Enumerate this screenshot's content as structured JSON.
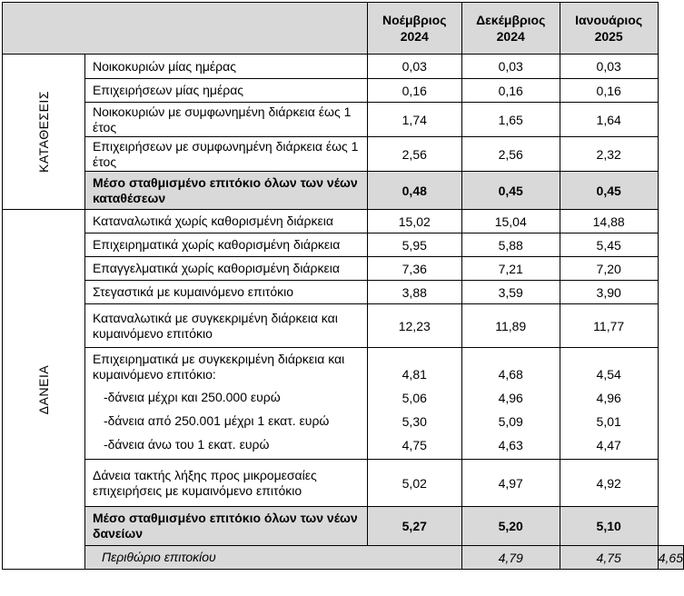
{
  "header": {
    "col1": "Νοέμβριος 2024",
    "col1a": "Νοέμβριος",
    "col1b": "2024",
    "col2a": "Δεκέμβριος",
    "col2b": "2024",
    "col3a": "Ιανουάριος",
    "col3b": "2025"
  },
  "deposits": {
    "side_label": "ΚΑΤΑΘΕΣΕΙΣ",
    "rows": [
      {
        "label": "Νοικοκυριών μίας ημέρας",
        "v": [
          "0,03",
          "0,03",
          "0,03"
        ]
      },
      {
        "label": "Επιχειρήσεων μίας ημέρας",
        "v": [
          "0,16",
          "0,16",
          "0,16"
        ]
      },
      {
        "label": "Νοικοκυριών με συμφωνημένη διάρκεια έως 1 έτος",
        "v": [
          "1,74",
          "1,65",
          "1,64"
        ]
      },
      {
        "label": "Επιχειρήσεων με συμφωνημένη διάρκεια έως 1 έτος",
        "v": [
          "2,56",
          "2,56",
          "2,32"
        ]
      }
    ],
    "total": {
      "label": "Μέσο σταθμισμένο επιτόκιο όλων των νέων καταθέσεων",
      "v": [
        "0,48",
        "0,45",
        "0,45"
      ]
    }
  },
  "loans": {
    "side_label": "ΔΑΝΕΙΑ",
    "rows": [
      {
        "label": "Καταναλωτικά χωρίς καθορισμένη διάρκεια",
        "v": [
          "15,02",
          "15,04",
          "14,88"
        ]
      },
      {
        "label": "Επιχειρηματικά χωρίς καθορισμένη διάρκεια",
        "v": [
          "5,95",
          "5,88",
          "5,45"
        ]
      },
      {
        "label": "Επαγγελματικά χωρίς καθορισμένη διάρκεια",
        "v": [
          "7,36",
          "7,21",
          "7,20"
        ]
      },
      {
        "label": "Στεγαστικά με κυμαινόμενο επιτόκιο",
        "v": [
          "3,88",
          "3,59",
          "3,90"
        ]
      },
      {
        "label": "Καταναλωτικά με συγκεκριμένη διάρκεια και κυμαινόμενο επιτόκιο",
        "v": [
          "12,23",
          "11,89",
          "11,77"
        ]
      }
    ],
    "business": {
      "label": "Επιχειρηματικά με συγκεκριμένη διάρκεια και κυμαινόμενο επιτόκιο:",
      "v": [
        "4,81",
        "4,68",
        "4,54"
      ],
      "subs": [
        {
          "label": "-δάνεια μέχρι και 250.000 ευρώ",
          "v": [
            "5,06",
            "4,96",
            "4,96"
          ]
        },
        {
          "label": "-δάνεια από 250.001 μέχρι 1 εκατ. ευρώ",
          "v": [
            "5,30",
            "5,09",
            "5,01"
          ]
        },
        {
          "label": "-δάνεια άνω του 1 εκατ. ευρώ",
          "v": [
            "4,75",
            "4,63",
            "4,47"
          ]
        }
      ]
    },
    "micro": {
      "label": "Δάνεια τακτής λήξης προς μικρομεσαίες επιχειρήσεις με κυμαινόμενο επιτόκιο",
      "v": [
        "5,02",
        "4,97",
        "4,92"
      ]
    },
    "total": {
      "label": "Μέσο σταθμισμένο επιτόκιο όλων των νέων δανείων",
      "v": [
        "5,27",
        "5,20",
        "5,10"
      ]
    }
  },
  "margin": {
    "label": "Περιθώριο επιτοκίου",
    "v": [
      "4,79",
      "4,75",
      "4,65"
    ]
  }
}
